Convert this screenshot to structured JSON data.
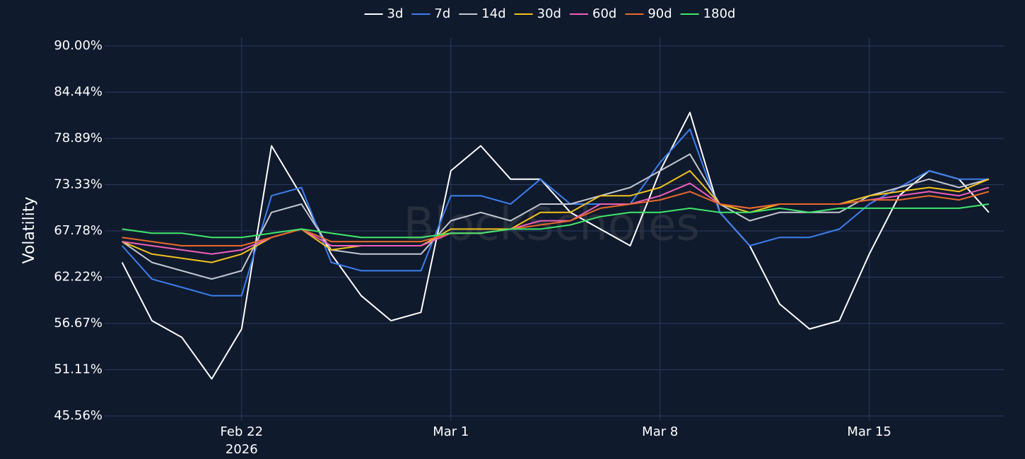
{
  "chart_data": {
    "type": "line",
    "legend_position": "top",
    "y_label": "Volatility",
    "watermark": "BlockScholes",
    "grid": true,
    "x": [
      "2026-02-18",
      "2026-02-19",
      "2026-02-20",
      "2026-02-21",
      "2026-02-22",
      "2026-02-23",
      "2026-02-24",
      "2026-02-25",
      "2026-02-26",
      "2026-02-27",
      "2026-02-28",
      "2026-03-01",
      "2026-03-02",
      "2026-03-03",
      "2026-03-04",
      "2026-03-05",
      "2026-03-06",
      "2026-03-07",
      "2026-03-08",
      "2026-03-09",
      "2026-03-10",
      "2026-03-11",
      "2026-03-12",
      "2026-03-13",
      "2026-03-14",
      "2026-03-15",
      "2026-03-16",
      "2026-03-17",
      "2026-03-18",
      "2026-03-19"
    ],
    "xlim": [
      "2026-02-17T10:00Z",
      "2026-03-19T12:00Z"
    ],
    "xticks": [
      {
        "value": "2026-02-22",
        "label": "Feb 22"
      },
      {
        "value": "2026-03-01",
        "label": "Mar 1"
      },
      {
        "value": "2026-03-08",
        "label": "Mar 8"
      },
      {
        "value": "2026-03-15",
        "label": "Mar 15"
      }
    ],
    "x_year_label": "2026",
    "ylim": [
      45.56,
      90
    ],
    "yticks": [
      {
        "value": 45.56,
        "label": "45.56%"
      },
      {
        "value": 51.11,
        "label": "51.11%"
      },
      {
        "value": 56.67,
        "label": "56.67%"
      },
      {
        "value": 62.22,
        "label": "62.22%"
      },
      {
        "value": 67.78,
        "label": "67.78%"
      },
      {
        "value": 73.33,
        "label": "73.33%"
      },
      {
        "value": 78.89,
        "label": "78.89%"
      },
      {
        "value": 84.44,
        "label": "84.44%"
      },
      {
        "value": 90,
        "label": "90.00%"
      }
    ],
    "series": [
      {
        "name": "3d",
        "color": "#ffffff",
        "values": [
          64,
          57,
          55,
          50,
          56,
          78,
          72,
          65,
          60,
          57,
          58,
          75,
          78,
          74,
          74,
          70,
          68,
          66,
          75,
          82,
          70,
          66,
          59,
          56,
          57,
          65,
          72,
          75,
          74,
          70
        ]
      },
      {
        "name": "7d",
        "color": "#3b7ff0",
        "values": [
          66,
          62,
          61,
          60,
          60,
          72,
          73,
          64,
          63,
          63,
          63,
          72,
          72,
          71,
          74,
          71,
          71,
          71,
          76,
          80,
          70,
          66,
          67,
          67,
          68,
          71,
          73,
          75,
          74,
          74
        ]
      },
      {
        "name": "14d",
        "color": "#c4c8d0",
        "values": [
          66.5,
          64,
          63,
          62,
          63,
          70,
          71,
          65.5,
          65,
          65,
          65,
          69,
          70,
          69,
          71,
          71,
          72,
          73,
          75,
          77,
          71,
          69,
          70,
          70,
          70,
          72,
          73,
          74,
          73,
          74
        ]
      },
      {
        "name": "30d",
        "color": "#f2c21b",
        "values": [
          66.5,
          65,
          64.5,
          64,
          65,
          67,
          68,
          65.5,
          66,
          66,
          66,
          68,
          68,
          68,
          70,
          70,
          72,
          72,
          73,
          75,
          71,
          70,
          71,
          71,
          71,
          72,
          72.5,
          73,
          72.5,
          74
        ]
      },
      {
        "name": "60d",
        "color": "#ef5fb8",
        "values": [
          66.5,
          66,
          65.5,
          65,
          65.5,
          67,
          68,
          66,
          66,
          66,
          66,
          67.5,
          67.5,
          68,
          69,
          69,
          71,
          71,
          72,
          73.5,
          71,
          70.5,
          71,
          71,
          71,
          71.5,
          72,
          72.5,
          72,
          73
        ]
      },
      {
        "name": "90d",
        "color": "#e8692a",
        "values": [
          67,
          66.5,
          66,
          66,
          66,
          67,
          68,
          66.5,
          66.5,
          66.5,
          66.5,
          67.5,
          67.5,
          68,
          68.5,
          69,
          70.5,
          71,
          71.5,
          72.5,
          71,
          70.5,
          71,
          71,
          71,
          71.5,
          71.5,
          72,
          71.5,
          72.5
        ]
      },
      {
        "name": "180d",
        "color": "#3ee86a",
        "values": [
          68,
          67.5,
          67.5,
          67,
          67,
          67.5,
          68,
          67.5,
          67,
          67,
          67,
          67.5,
          67.5,
          68,
          68,
          68.5,
          69.5,
          70,
          70,
          70.5,
          70,
          70,
          70.5,
          70,
          70.5,
          70.5,
          70.5,
          70.5,
          70.5,
          71
        ]
      }
    ]
  }
}
